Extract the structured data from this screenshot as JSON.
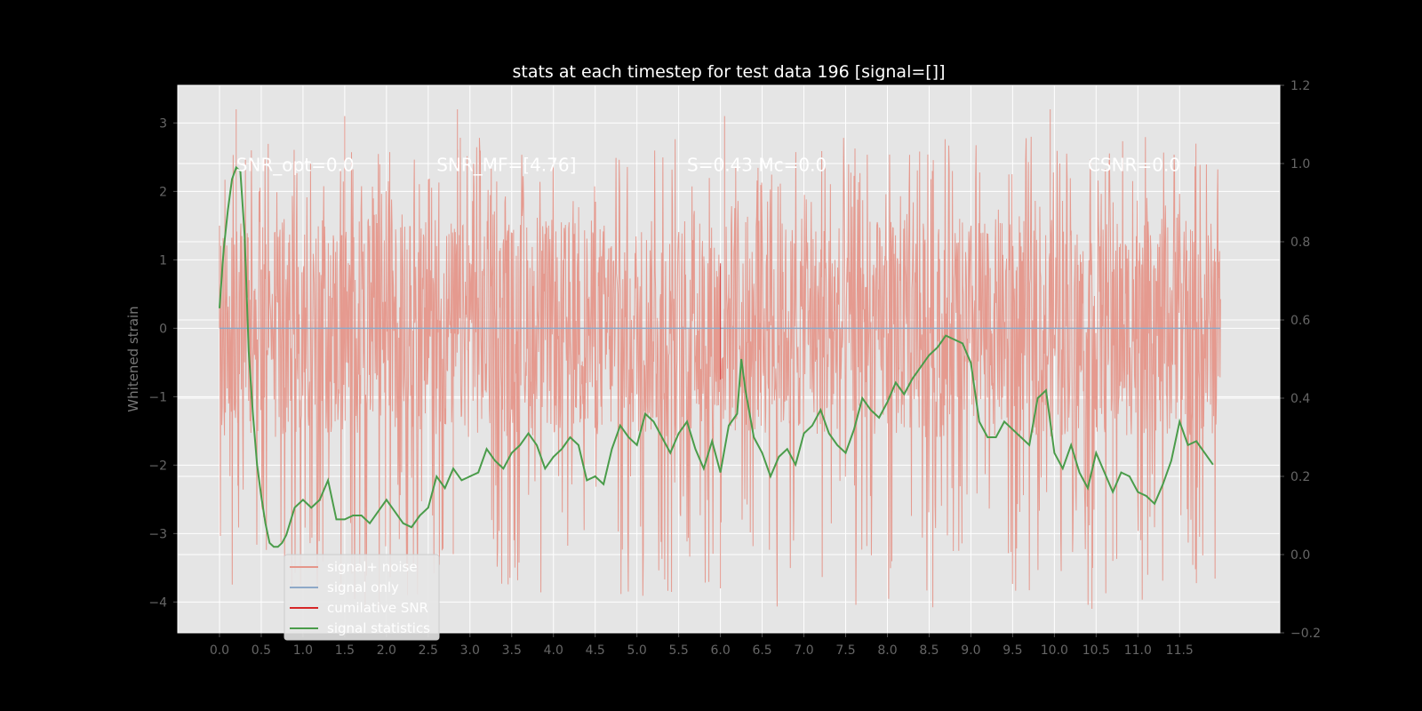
{
  "chart_data": {
    "type": "line",
    "title": "stats at each timestep for test data 196 [signal=[]]",
    "ylabel": "Whitened strain",
    "xlabel": "",
    "xlim": [
      -0.5,
      12.7
    ],
    "ylim": [
      -4.45,
      3.55
    ],
    "y2lim": [
      -0.2,
      1.2
    ],
    "grid": true,
    "legend_position": "lower-left",
    "x_ticks": [
      "0.0",
      "0.5",
      "1.0",
      "1.5",
      "2.0",
      "2.5",
      "3.0",
      "3.5",
      "4.0",
      "4.5",
      "5.0",
      "5.5",
      "6.0",
      "6.5",
      "7.0",
      "7.5",
      "8.0",
      "8.5",
      "9.0",
      "9.5",
      "10.0",
      "10.5",
      "11.0",
      "11.5"
    ],
    "y_ticks": [
      "3",
      "2",
      "1",
      "0",
      "−1",
      "−2",
      "−3",
      "−4"
    ],
    "y2_ticks": [
      "1.2",
      "1.0",
      "0.8",
      "0.6",
      "0.4",
      "0.2",
      "0.0",
      "−0.2"
    ],
    "annotations": [
      {
        "text": "SNR_opt=0.0",
        "x": 0.2
      },
      {
        "text": "SNR_MF=[4.76]",
        "x": 2.6
      },
      {
        "text": "S=0.43  Mc=0.0",
        "x": 5.6
      },
      {
        "text": "CSNR=0.0",
        "x": 10.4
      }
    ],
    "noise_band": {
      "x_start": 0.0,
      "x_end": 11.99,
      "typical_min": -1.6,
      "typical_max": 1.6,
      "extreme_min": -4.1,
      "extreme_max": 3.2
    },
    "series": [
      {
        "name": "signal+ noise",
        "color": "#E5968A",
        "axis": "left",
        "x": [
          0.0,
          0.2,
          0.22,
          1.5,
          2.8,
          2.85,
          6.0,
          6.05,
          9.95,
          10.45,
          10.7
        ],
        "values": [
          1.5,
          3.2,
          -2.3,
          3.1,
          -3.3,
          3.2,
          -3.8,
          3.1,
          3.2,
          -4.1,
          -3.4
        ]
      },
      {
        "name": "signal only",
        "color": "#8EA9C8",
        "axis": "left",
        "x": [
          0.0,
          11.99
        ],
        "values": [
          0.0,
          0.0
        ]
      },
      {
        "name": "cumilative SNR",
        "color": "#D62728",
        "axis": "left",
        "x": [
          6.0,
          6.0
        ],
        "values": [
          0.95,
          -0.75
        ]
      },
      {
        "name": "signal statistics",
        "color": "#4A9C4A",
        "axis": "right",
        "x": [
          0.0,
          0.05,
          0.1,
          0.15,
          0.2,
          0.25,
          0.3,
          0.35,
          0.4,
          0.45,
          0.5,
          0.55,
          0.6,
          0.65,
          0.7,
          0.75,
          0.8,
          0.9,
          1.0,
          1.1,
          1.2,
          1.3,
          1.4,
          1.5,
          1.6,
          1.7,
          1.8,
          1.9,
          2.0,
          2.1,
          2.2,
          2.3,
          2.4,
          2.5,
          2.6,
          2.7,
          2.8,
          2.9,
          3.0,
          3.1,
          3.2,
          3.3,
          3.4,
          3.5,
          3.6,
          3.7,
          3.8,
          3.9,
          4.0,
          4.1,
          4.2,
          4.3,
          4.4,
          4.5,
          4.6,
          4.7,
          4.8,
          4.9,
          5.0,
          5.1,
          5.2,
          5.3,
          5.4,
          5.5,
          5.6,
          5.7,
          5.8,
          5.9,
          6.0,
          6.1,
          6.2,
          6.25,
          6.3,
          6.4,
          6.5,
          6.6,
          6.7,
          6.8,
          6.9,
          7.0,
          7.1,
          7.2,
          7.3,
          7.4,
          7.5,
          7.6,
          7.7,
          7.8,
          7.9,
          8.0,
          8.1,
          8.2,
          8.3,
          8.4,
          8.5,
          8.6,
          8.7,
          8.8,
          8.9,
          9.0,
          9.1,
          9.2,
          9.3,
          9.4,
          9.5,
          9.6,
          9.7,
          9.8,
          9.9,
          10.0,
          10.1,
          10.2,
          10.3,
          10.4,
          10.5,
          10.6,
          10.7,
          10.8,
          10.9,
          11.0,
          11.1,
          11.2,
          11.3,
          11.4,
          11.5,
          11.6,
          11.7,
          11.8,
          11.9
        ],
        "values": [
          0.63,
          0.78,
          0.88,
          0.96,
          0.99,
          0.98,
          0.82,
          0.52,
          0.36,
          0.23,
          0.15,
          0.08,
          0.03,
          0.02,
          0.02,
          0.03,
          0.05,
          0.12,
          0.14,
          0.12,
          0.14,
          0.19,
          0.09,
          0.09,
          0.1,
          0.1,
          0.08,
          0.11,
          0.14,
          0.11,
          0.08,
          0.07,
          0.1,
          0.12,
          0.2,
          0.17,
          0.22,
          0.19,
          0.2,
          0.21,
          0.27,
          0.24,
          0.22,
          0.26,
          0.28,
          0.31,
          0.28,
          0.22,
          0.25,
          0.27,
          0.3,
          0.28,
          0.19,
          0.2,
          0.18,
          0.27,
          0.33,
          0.3,
          0.28,
          0.36,
          0.34,
          0.3,
          0.26,
          0.31,
          0.34,
          0.27,
          0.22,
          0.29,
          0.21,
          0.33,
          0.36,
          0.5,
          0.42,
          0.3,
          0.26,
          0.2,
          0.25,
          0.27,
          0.23,
          0.31,
          0.33,
          0.37,
          0.31,
          0.28,
          0.26,
          0.32,
          0.4,
          0.37,
          0.35,
          0.39,
          0.44,
          0.41,
          0.45,
          0.48,
          0.51,
          0.53,
          0.56,
          0.55,
          0.54,
          0.49,
          0.34,
          0.3,
          0.3,
          0.34,
          0.32,
          0.3,
          0.28,
          0.4,
          0.42,
          0.26,
          0.22,
          0.28,
          0.21,
          0.17,
          0.26,
          0.21,
          0.16,
          0.21,
          0.2,
          0.16,
          0.15,
          0.13,
          0.18,
          0.24,
          0.34,
          0.28,
          0.29,
          0.26,
          0.23
        ]
      }
    ]
  }
}
